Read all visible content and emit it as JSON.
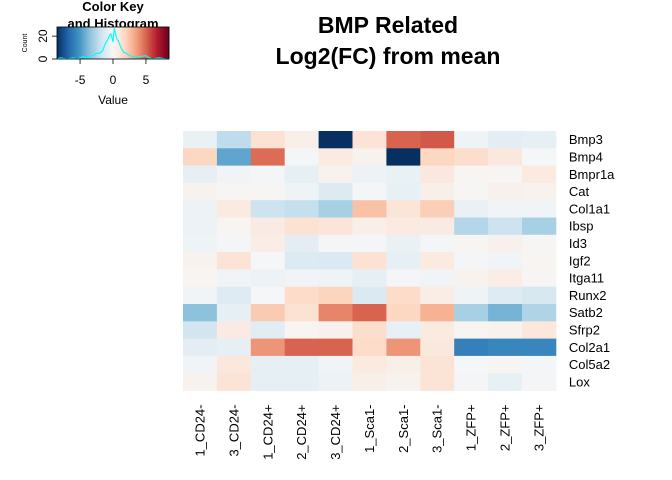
{
  "chart_data": {
    "type": "heatmap",
    "title": [
      "BMP Related",
      "Log2(FC) from mean"
    ],
    "rows": [
      "Bmp3",
      "Bmp4",
      "Bmpr1a",
      "Cat",
      "Col1a1",
      "Ibsp",
      "Id3",
      "Igf2",
      "Itga11",
      "Runx2",
      "Satb2",
      "Sfrp2",
      "Col2a1",
      "Col5a2",
      "Lox"
    ],
    "columns": [
      "1_CD24-",
      "3_CD24-",
      "1_CD24+",
      "2_CD24+",
      "3_CD24+",
      "1_Sca1-",
      "2_Sca1-",
      "3_Sca1-",
      "1_ZFP+",
      "2_ZFP+",
      "3_ZFP+"
    ],
    "values": [
      [
        -0.6,
        -2.2,
        1.3,
        0.5,
        -8.5,
        1.2,
        5.0,
        5.3,
        -0.4,
        -0.9,
        -0.8
      ],
      [
        1.8,
        -4.5,
        4.8,
        -0.2,
        0.8,
        0.3,
        -8.5,
        1.8,
        1.5,
        0.9,
        -0.1
      ],
      [
        -0.8,
        -0.3,
        -0.2,
        -0.8,
        0.3,
        -0.5,
        -0.6,
        0.9,
        0.2,
        0.1,
        0.8
      ],
      [
        0.3,
        0.1,
        0.1,
        -0.4,
        -1.2,
        -0.2,
        -0.7,
        0.5,
        0.1,
        0.4,
        0.3
      ],
      [
        -0.5,
        0.8,
        -1.8,
        -2.0,
        -2.8,
        2.5,
        1.1,
        2.1,
        -0.6,
        -0.3,
        -0.3
      ],
      [
        -0.5,
        0.2,
        0.7,
        1.3,
        1.1,
        0.5,
        0.8,
        0.7,
        -2.5,
        -1.8,
        -2.8
      ],
      [
        -0.4,
        -0.2,
        0.6,
        -0.9,
        -0.2,
        -0.2,
        -0.6,
        -0.2,
        0.2,
        0.4,
        0.1
      ],
      [
        0.3,
        1.2,
        -0.1,
        -1.2,
        -1.3,
        1.3,
        -0.8,
        0.8,
        -0.2,
        -0.3,
        0.2
      ],
      [
        0.2,
        -0.3,
        -0.5,
        -0.3,
        -0.4,
        -0.8,
        -0.2,
        -0.3,
        0.3,
        0.6,
        0.1
      ],
      [
        -0.3,
        -1.1,
        -0.1,
        1.6,
        1.9,
        -1.3,
        1.6,
        0.6,
        -0.4,
        -1.1,
        -1.4
      ],
      [
        -3.5,
        -0.8,
        2.2,
        1.3,
        4.2,
        5.0,
        1.8,
        3.0,
        -2.8,
        -4.0,
        -2.6
      ],
      [
        -1.6,
        0.7,
        -1.0,
        0.2,
        0.4,
        1.5,
        -0.7,
        0.8,
        0.2,
        0.3,
        1.0
      ],
      [
        -0.9,
        -0.8,
        3.8,
        5.0,
        5.0,
        1.6,
        3.8,
        0.9,
        -5.8,
        -5.6,
        -5.6
      ],
      [
        -0.3,
        1.0,
        -0.8,
        -0.8,
        -0.3,
        0.8,
        0.5,
        1.2,
        -0.1,
        0.2,
        -0.2
      ],
      [
        0.3,
        1.2,
        -0.8,
        -0.8,
        -0.5,
        0.5,
        0.3,
        1.2,
        -0.2,
        -0.7,
        -0.2
      ]
    ],
    "color_key": {
      "title": [
        "Color Key",
        "and Histogram"
      ],
      "xlabel": "Value",
      "ylabel": "Count",
      "xticks": [
        "-5",
        "0",
        "5"
      ],
      "xtick_values": [
        -5,
        0,
        5
      ],
      "yticks": [
        "0",
        "20"
      ],
      "ytick_values": [
        0,
        20
      ],
      "range": [
        -8.5,
        8.5
      ],
      "ylim": [
        0,
        28
      ],
      "histogram_line_color": "#00ffff",
      "histogram": [
        [
          -8.5,
          0
        ],
        [
          -8,
          1
        ],
        [
          -7,
          0
        ],
        [
          -6,
          1
        ],
        [
          -5.5,
          0
        ],
        [
          -5,
          1
        ],
        [
          -4.5,
          2
        ],
        [
          -4,
          1
        ],
        [
          -3,
          3
        ],
        [
          -2.5,
          5
        ],
        [
          -2,
          5
        ],
        [
          -1.6,
          7
        ],
        [
          -1.2,
          13
        ],
        [
          -0.8,
          17
        ],
        [
          -0.5,
          21
        ],
        [
          -0.3,
          22
        ],
        [
          0,
          15
        ],
        [
          0.2,
          27
        ],
        [
          0.4,
          22
        ],
        [
          0.6,
          17
        ],
        [
          0.8,
          16
        ],
        [
          1.2,
          10
        ],
        [
          1.6,
          6
        ],
        [
          2,
          5
        ],
        [
          2.5,
          3
        ],
        [
          3,
          2
        ],
        [
          3.5,
          2
        ],
        [
          4,
          2
        ],
        [
          5,
          3
        ],
        [
          5.5,
          1
        ],
        [
          6,
          0
        ],
        [
          7,
          1
        ],
        [
          8,
          0
        ],
        [
          8.5,
          0
        ]
      ]
    },
    "colors": {
      "low": "#053061",
      "mid": "#f7f7f7",
      "high": "#67001f"
    }
  }
}
